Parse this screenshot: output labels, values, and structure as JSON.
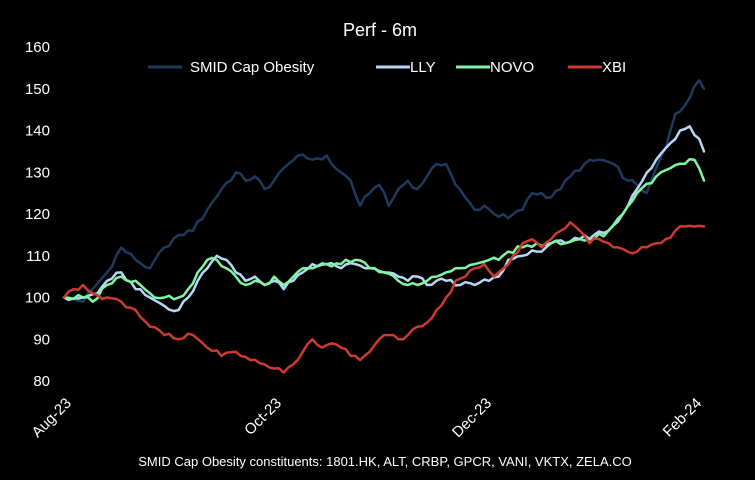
{
  "chart_data": {
    "type": "line",
    "title": "Perf - 6m",
    "xlabel": "",
    "ylabel": "",
    "ylim": [
      80,
      160
    ],
    "yticks": [
      80,
      90,
      100,
      110,
      120,
      130,
      140,
      150,
      160
    ],
    "x_tick_labels": [
      "Aug-23",
      "Oct-23",
      "Dec-23",
      "Feb-24"
    ],
    "x_tick_positions": [
      0,
      44,
      88,
      132
    ],
    "legend_position": "top",
    "grid": false,
    "footnote": "SMID  Cap Obesity constituents: 1801.HK, ALT, CRBP,  GPCR,  VANI, VKTX, ZELA.CO",
    "series": [
      {
        "name": "SMID Cap Obesity",
        "color": "#1f3a5f",
        "keypoints": [
          [
            0,
            100
          ],
          [
            4,
            99
          ],
          [
            6,
            102
          ],
          [
            9,
            106
          ],
          [
            12,
            112
          ],
          [
            15,
            109
          ],
          [
            18,
            107
          ],
          [
            21,
            112
          ],
          [
            24,
            115
          ],
          [
            27,
            116
          ],
          [
            30,
            121
          ],
          [
            33,
            126
          ],
          [
            36,
            130
          ],
          [
            38,
            128
          ],
          [
            40,
            129
          ],
          [
            42,
            126
          ],
          [
            44,
            128
          ],
          [
            47,
            132
          ],
          [
            49,
            134
          ],
          [
            52,
            133
          ],
          [
            55,
            134
          ],
          [
            56,
            132
          ],
          [
            58,
            130
          ],
          [
            60,
            128
          ],
          [
            62,
            122
          ],
          [
            64,
            125
          ],
          [
            66,
            127
          ],
          [
            68,
            122
          ],
          [
            70,
            126
          ],
          [
            72,
            128
          ],
          [
            74,
            126
          ],
          [
            76,
            129
          ],
          [
            78,
            132
          ],
          [
            80,
            132
          ],
          [
            82,
            127
          ],
          [
            84,
            124
          ],
          [
            86,
            121
          ],
          [
            88,
            122
          ],
          [
            90,
            120
          ],
          [
            93,
            119
          ],
          [
            96,
            121
          ],
          [
            98,
            125
          ],
          [
            100,
            125
          ],
          [
            102,
            124
          ],
          [
            104,
            126
          ],
          [
            106,
            129
          ],
          [
            109,
            132
          ],
          [
            112,
            133
          ],
          [
            115,
            132
          ],
          [
            118,
            128
          ],
          [
            120,
            127
          ],
          [
            122,
            125
          ],
          [
            124,
            131
          ],
          [
            126,
            136
          ],
          [
            128,
            144
          ],
          [
            130,
            146
          ],
          [
            133,
            152
          ],
          [
            134,
            150
          ]
        ]
      },
      {
        "name": "LLY",
        "color": "#b7d7f5",
        "keypoints": [
          [
            0,
            100
          ],
          [
            4,
            100
          ],
          [
            7,
            101
          ],
          [
            9,
            104
          ],
          [
            12,
            106
          ],
          [
            15,
            102
          ],
          [
            18,
            100
          ],
          [
            21,
            98
          ],
          [
            24,
            97
          ],
          [
            26,
            100
          ],
          [
            28,
            104
          ],
          [
            30,
            107
          ],
          [
            32,
            110
          ],
          [
            34,
            109
          ],
          [
            36,
            106
          ],
          [
            38,
            104
          ],
          [
            40,
            105
          ],
          [
            42,
            103
          ],
          [
            44,
            104
          ],
          [
            46,
            102
          ],
          [
            48,
            104
          ],
          [
            50,
            106
          ],
          [
            52,
            108
          ],
          [
            55,
            108
          ],
          [
            58,
            107
          ],
          [
            61,
            108
          ],
          [
            64,
            107
          ],
          [
            67,
            106
          ],
          [
            70,
            105
          ],
          [
            72,
            104
          ],
          [
            74,
            105
          ],
          [
            76,
            103
          ],
          [
            78,
            104
          ],
          [
            80,
            104
          ],
          [
            83,
            103
          ],
          [
            86,
            103
          ],
          [
            89,
            104
          ],
          [
            91,
            105
          ],
          [
            93,
            109
          ],
          [
            96,
            110
          ],
          [
            99,
            111
          ],
          [
            102,
            113
          ],
          [
            105,
            113
          ],
          [
            108,
            114
          ],
          [
            111,
            115
          ],
          [
            114,
            116
          ],
          [
            117,
            120
          ],
          [
            120,
            126
          ],
          [
            124,
            133
          ],
          [
            127,
            137
          ],
          [
            129,
            140
          ],
          [
            131,
            141
          ],
          [
            133,
            138
          ],
          [
            134,
            135
          ]
        ]
      },
      {
        "name": "NOVO",
        "color": "#7ff5a6",
        "keypoints": [
          [
            0,
            100
          ],
          [
            4,
            100
          ],
          [
            6,
            99
          ],
          [
            9,
            103
          ],
          [
            12,
            105
          ],
          [
            15,
            104
          ],
          [
            18,
            101
          ],
          [
            21,
            100
          ],
          [
            24,
            100
          ],
          [
            26,
            102
          ],
          [
            28,
            106
          ],
          [
            30,
            109
          ],
          [
            32,
            109
          ],
          [
            34,
            107
          ],
          [
            36,
            105
          ],
          [
            38,
            103
          ],
          [
            40,
            104
          ],
          [
            42,
            103
          ],
          [
            44,
            105
          ],
          [
            46,
            103
          ],
          [
            48,
            105
          ],
          [
            50,
            107
          ],
          [
            52,
            107
          ],
          [
            55,
            108
          ],
          [
            58,
            108
          ],
          [
            61,
            109
          ],
          [
            64,
            107
          ],
          [
            67,
            106
          ],
          [
            70,
            104
          ],
          [
            72,
            103
          ],
          [
            74,
            103
          ],
          [
            76,
            104
          ],
          [
            78,
            105
          ],
          [
            80,
            106
          ],
          [
            83,
            107
          ],
          [
            86,
            108
          ],
          [
            89,
            109
          ],
          [
            91,
            109
          ],
          [
            93,
            111
          ],
          [
            96,
            112
          ],
          [
            99,
            113
          ],
          [
            102,
            113
          ],
          [
            105,
            113
          ],
          [
            108,
            114
          ],
          [
            111,
            114
          ],
          [
            114,
            116
          ],
          [
            117,
            120
          ],
          [
            120,
            125
          ],
          [
            124,
            129
          ],
          [
            127,
            131
          ],
          [
            130,
            132
          ],
          [
            132,
            133
          ],
          [
            134,
            128
          ]
        ]
      },
      {
        "name": "XBI",
        "color": "#cc3a30",
        "keypoints": [
          [
            0,
            100
          ],
          [
            2,
            102
          ],
          [
            4,
            103
          ],
          [
            6,
            101
          ],
          [
            9,
            100
          ],
          [
            12,
            99
          ],
          [
            15,
            97
          ],
          [
            18,
            93
          ],
          [
            21,
            91
          ],
          [
            24,
            90
          ],
          [
            27,
            91
          ],
          [
            30,
            88
          ],
          [
            33,
            86
          ],
          [
            36,
            87
          ],
          [
            39,
            85
          ],
          [
            42,
            84
          ],
          [
            44,
            83
          ],
          [
            46,
            82
          ],
          [
            48,
            84
          ],
          [
            50,
            87
          ],
          [
            52,
            90
          ],
          [
            54,
            88
          ],
          [
            56,
            89
          ],
          [
            58,
            88
          ],
          [
            60,
            86
          ],
          [
            62,
            85
          ],
          [
            64,
            87
          ],
          [
            66,
            90
          ],
          [
            68,
            91
          ],
          [
            70,
            90
          ],
          [
            72,
            91
          ],
          [
            74,
            93
          ],
          [
            76,
            94
          ],
          [
            78,
            97
          ],
          [
            80,
            100
          ],
          [
            82,
            104
          ],
          [
            84,
            105
          ],
          [
            86,
            107
          ],
          [
            88,
            108
          ],
          [
            90,
            105
          ],
          [
            92,
            107
          ],
          [
            94,
            110
          ],
          [
            96,
            113
          ],
          [
            98,
            114
          ],
          [
            100,
            112
          ],
          [
            102,
            114
          ],
          [
            104,
            116
          ],
          [
            106,
            118
          ],
          [
            108,
            116
          ],
          [
            110,
            113
          ],
          [
            112,
            114
          ],
          [
            114,
            113
          ],
          [
            116,
            112
          ],
          [
            118,
            111
          ],
          [
            120,
            111
          ],
          [
            122,
            112
          ],
          [
            124,
            113
          ],
          [
            126,
            114
          ],
          [
            128,
            116
          ],
          [
            130,
            117
          ],
          [
            132,
            117
          ],
          [
            134,
            117
          ]
        ]
      }
    ]
  }
}
